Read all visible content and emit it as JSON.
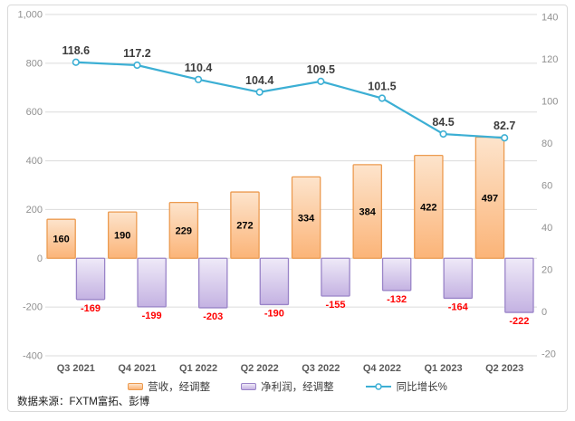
{
  "chart_data": {
    "type": "combo-bar-line",
    "title": "",
    "xlabel": "",
    "ylabel": "",
    "grid": true,
    "legend_position": "bottom",
    "categories": [
      "Q3 2021",
      "Q4 2021",
      "Q1 2022",
      "Q2 2022",
      "Q3 2022",
      "Q4 2022",
      "Q1 2023",
      "Q2 2023"
    ],
    "series": [
      {
        "name": "营收，经调整",
        "type": "bar",
        "axis": "left",
        "values": [
          160,
          190,
          229,
          272,
          334,
          384,
          422,
          497
        ],
        "fill_top": "#FDE4CC",
        "fill_bottom": "#FBB478",
        "border": "#EC9B50",
        "label_color": "#000000"
      },
      {
        "name": "净利润，经调整",
        "type": "bar",
        "axis": "left",
        "values": [
          -169,
          -199,
          -203,
          -190,
          -155,
          -132,
          -164,
          -222
        ],
        "fill_top": "#EFEAF8",
        "fill_bottom": "#C4B2E2",
        "border": "#9A84C8",
        "label_color": "#FF0000"
      },
      {
        "name": "同比增长%",
        "type": "line",
        "axis": "right",
        "values": [
          118.6,
          117.2,
          110.4,
          104.4,
          109.5,
          101.5,
          84.5,
          82.7
        ],
        "color": "#3CAFD4",
        "label_color": "#3D3D3D"
      }
    ],
    "left_axis": {
      "min": -400,
      "max": 1000,
      "tick_values": [
        1000,
        800,
        600,
        400,
        200,
        0,
        -200,
        -400
      ],
      "tick_labels": [
        "1,000",
        "800",
        "600",
        "400",
        "200",
        "0",
        "-200",
        "-400"
      ]
    },
    "right_axis": {
      "min": -20,
      "max": 140,
      "tick_values": [
        140,
        120,
        100,
        80,
        60,
        40,
        20,
        0,
        -20
      ],
      "tick_labels": [
        "140",
        "120",
        "100",
        "80",
        "60",
        "40",
        "20",
        "0",
        "-20"
      ]
    }
  },
  "colors": {
    "grid": "#DBDBDB",
    "axis_tick_label": "#909090",
    "category_label": "#595959",
    "negative_label": "#FF0000",
    "frame_border": "#D9D9D9",
    "background": "#FFFFFF"
  },
  "source_note": "数据来源：FXTM富拓、彭博"
}
